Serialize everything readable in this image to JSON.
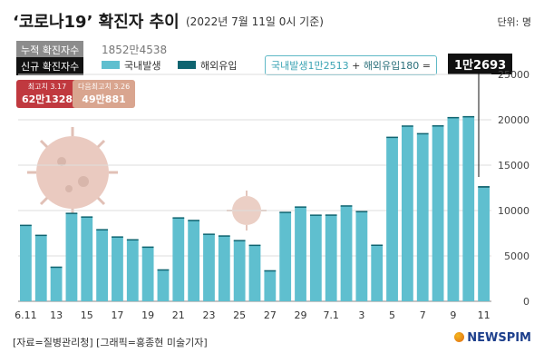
{
  "header": {
    "title": "‘코로나19’ 확진자 추이",
    "subtitle": "(2022년 7월 11일 0시 기준)",
    "unit": "단위: 명"
  },
  "cumulative": {
    "label": "누적 확진자수",
    "value": "1852만4538"
  },
  "new_cases": {
    "label": "신규 확진자수"
  },
  "legend": {
    "domestic": "국내발생",
    "imported": "해외유입"
  },
  "annotation": {
    "domestic_text": "국내발생1만2513",
    "plus": " + ",
    "imported_text": "해외유입180",
    "equals": " =",
    "total": "1만2693"
  },
  "badges": {
    "max": {
      "label": "최고치 3.17",
      "value": "62만1328"
    },
    "second": {
      "label": "다음최고치 3.26",
      "value": "49만881"
    }
  },
  "footer": {
    "source": "[자료=질병관리청] [그래픽=홍종현 미술기자]",
    "logo": "NEWSPIM"
  },
  "colors": {
    "domestic": "#5fbfcf",
    "imported": "#0f6470",
    "max_badge": "#c0393f",
    "second_badge": "#d9a58f",
    "virus": "#d9a08d"
  },
  "chart_data": {
    "type": "bar",
    "title": "‘코로나19’ 확진자 추이",
    "xlabel": "",
    "ylabel": "",
    "ylim": [
      0,
      25000
    ],
    "yticks": [
      0,
      5000,
      10000,
      15000,
      20000,
      25000
    ],
    "ytick_labels": [
      "0",
      "5000",
      "10000",
      "15000",
      "20000",
      "25000"
    ],
    "xtick_labels": [
      "6.11",
      "13",
      "15",
      "17",
      "19",
      "21",
      "23",
      "25",
      "27",
      "29",
      "7.1",
      "3",
      "5",
      "7",
      "9",
      "11"
    ],
    "categories": [
      "6.11",
      "6.12",
      "6.13",
      "6.14",
      "6.15",
      "6.16",
      "6.17",
      "6.18",
      "6.19",
      "6.20",
      "6.21",
      "6.22",
      "6.23",
      "6.24",
      "6.25",
      "6.26",
      "6.27",
      "6.28",
      "6.29",
      "6.30",
      "7.1",
      "7.2",
      "7.3",
      "7.4",
      "7.5",
      "7.6",
      "7.7",
      "7.8",
      "7.9",
      "7.10",
      "7.11"
    ],
    "series": [
      {
        "name": "국내발생",
        "values": [
          8400,
          7300,
          3800,
          9700,
          9300,
          7900,
          7100,
          6800,
          6000,
          3500,
          9200,
          8900,
          7400,
          7200,
          6700,
          6200,
          3400,
          9800,
          10400,
          9500,
          9500,
          10500,
          9900,
          6200,
          18000,
          19300,
          18400,
          19300,
          20200,
          20300,
          12513
        ]
      },
      {
        "name": "해외유입",
        "values": [
          40,
          40,
          30,
          60,
          60,
          60,
          60,
          50,
          40,
          30,
          60,
          80,
          60,
          70,
          60,
          40,
          30,
          70,
          60,
          60,
          70,
          80,
          50,
          50,
          140,
          80,
          140,
          100,
          110,
          110,
          180
        ]
      }
    ]
  }
}
